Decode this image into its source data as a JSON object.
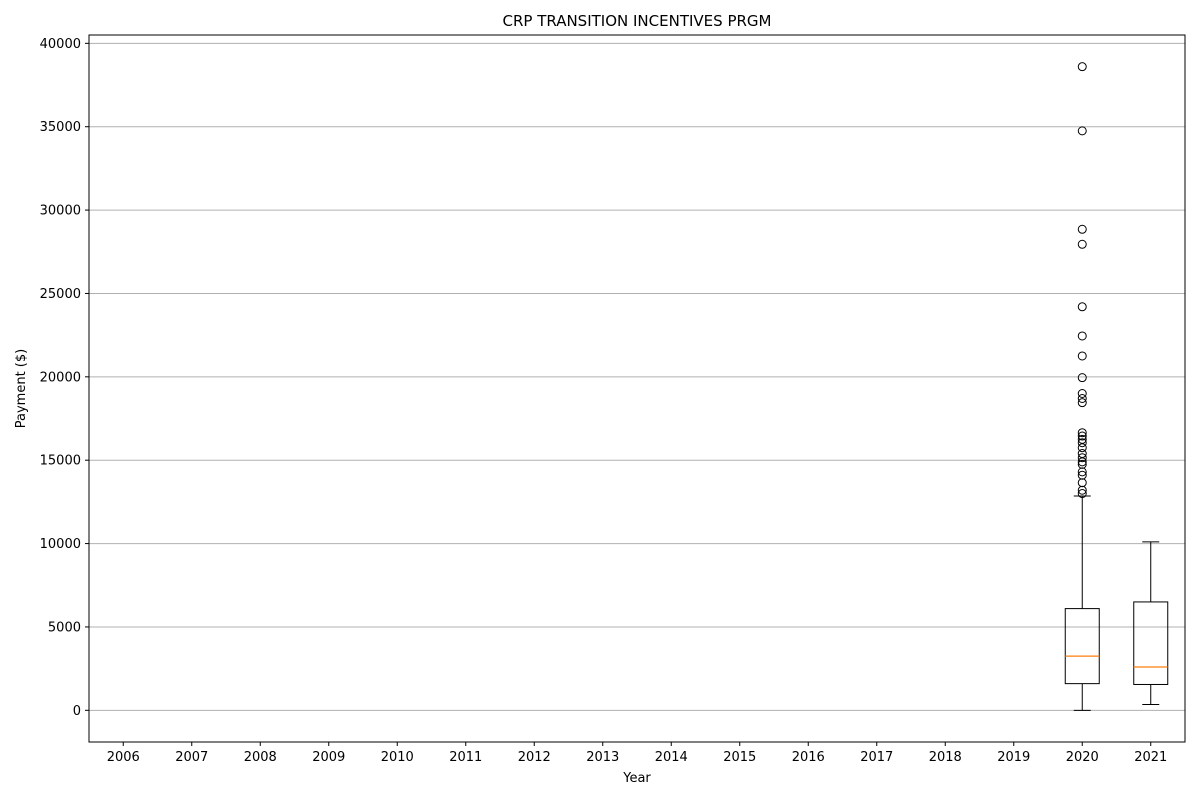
{
  "chart_data": {
    "type": "box",
    "title": "CRP TRANSITION INCENTIVES PRGM",
    "xlabel": "Year",
    "ylabel": "Payment ($)",
    "categories": [
      "2006",
      "2007",
      "2008",
      "2009",
      "2010",
      "2011",
      "2012",
      "2013",
      "2014",
      "2015",
      "2016",
      "2017",
      "2018",
      "2019",
      "2020",
      "2021"
    ],
    "ylim": [
      -1900,
      40500
    ],
    "yticks": [
      0,
      5000,
      10000,
      15000,
      20000,
      25000,
      30000,
      35000,
      40000
    ],
    "grid": "y",
    "boxes": [
      {
        "category": "2020",
        "whisker_low": 0,
        "q1": 1600,
        "median": 3250,
        "q3": 6100,
        "whisker_high": 12850,
        "outliers": [
          38600,
          34750,
          28850,
          27950,
          24200,
          22450,
          21250,
          19950,
          19000,
          18700,
          18450,
          16650,
          16450,
          16250,
          16050,
          15750,
          15400,
          15150,
          14900,
          14750,
          14300,
          14100,
          13650,
          13200,
          13000
        ]
      },
      {
        "category": "2021",
        "whisker_low": 350,
        "q1": 1550,
        "median": 2600,
        "q3": 6500,
        "whisker_high": 10100,
        "outliers": []
      }
    ],
    "colors": {
      "median": "#ff7f0e",
      "box": "#000000",
      "grid": "#b0b0b0"
    }
  }
}
